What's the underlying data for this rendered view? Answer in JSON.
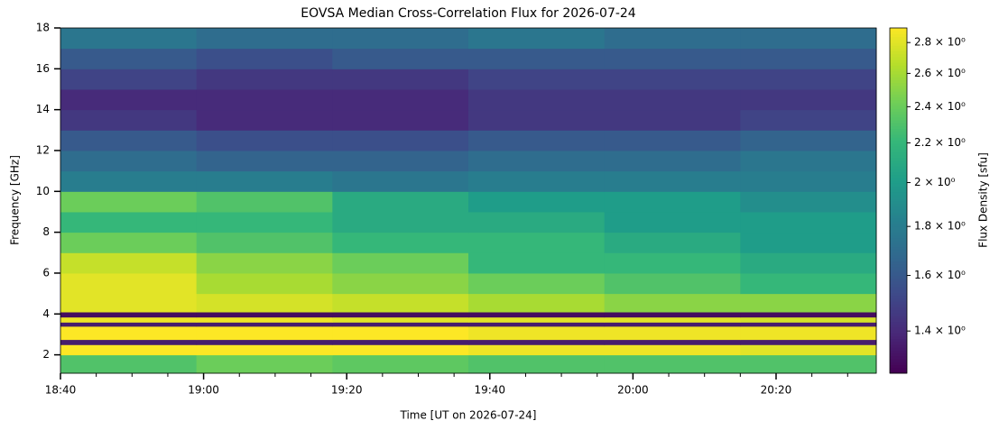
{
  "chart_data": {
    "type": "heatmap",
    "title": "EOVSA Median Cross-Correlation Flux for 2026-07-24",
    "x_label": "Time [UT on 2026-07-24]",
    "y_label": "Frequency [GHz]",
    "colorbar_label": "Flux Density [sfu]",
    "colormap": "viridis",
    "color_scale": "log",
    "x_edges": [
      "18:40",
      "18:59",
      "19:18",
      "19:37",
      "19:56",
      "20:15",
      "20:34"
    ],
    "y_edges": [
      1.1,
      2,
      2.5,
      2.75,
      3.4,
      3.6,
      3.85,
      4.1,
      5,
      6,
      7,
      8,
      9,
      10,
      11,
      12,
      13,
      14,
      15,
      16,
      17,
      18
    ],
    "z": [
      [
        2.3,
        2.4,
        2.35,
        2.3,
        2.3,
        2.3
      ],
      [
        2.9,
        2.9,
        2.9,
        2.85,
        2.85,
        2.8
      ],
      [
        1.35,
        1.35,
        1.35,
        1.35,
        1.35,
        1.35
      ],
      [
        2.9,
        2.9,
        2.9,
        2.85,
        2.85,
        2.85
      ],
      [
        1.35,
        1.35,
        1.35,
        1.35,
        1.35,
        1.35
      ],
      [
        2.85,
        2.85,
        2.8,
        2.8,
        2.8,
        2.75
      ],
      [
        1.3,
        1.3,
        1.3,
        1.3,
        1.3,
        1.3
      ],
      [
        2.8,
        2.75,
        2.7,
        2.6,
        2.5,
        2.5
      ],
      [
        2.8,
        2.6,
        2.5,
        2.4,
        2.3,
        2.2
      ],
      [
        2.7,
        2.5,
        2.4,
        2.2,
        2.2,
        2.1
      ],
      [
        2.4,
        2.3,
        2.2,
        2.2,
        2.1,
        2.0
      ],
      [
        2.2,
        2.2,
        2.1,
        2.1,
        2.0,
        2.0
      ],
      [
        2.4,
        2.3,
        2.1,
        2.0,
        2.0,
        1.9
      ],
      [
        1.8,
        1.8,
        1.75,
        1.8,
        1.8,
        1.8
      ],
      [
        1.7,
        1.65,
        1.65,
        1.7,
        1.7,
        1.75
      ],
      [
        1.6,
        1.55,
        1.55,
        1.6,
        1.6,
        1.65
      ],
      [
        1.45,
        1.4,
        1.4,
        1.45,
        1.45,
        1.5
      ],
      [
        1.4,
        1.4,
        1.4,
        1.45,
        1.45,
        1.45
      ],
      [
        1.5,
        1.45,
        1.45,
        1.5,
        1.5,
        1.5
      ],
      [
        1.6,
        1.55,
        1.6,
        1.6,
        1.6,
        1.6
      ],
      [
        1.75,
        1.7,
        1.7,
        1.75,
        1.7,
        1.7
      ]
    ],
    "xlim": [
      "18:40",
      "20:34"
    ],
    "xticks": [
      "18:40",
      "19:00",
      "19:20",
      "19:40",
      "20:00",
      "20:20"
    ],
    "xminorticks": [
      "18:45",
      "18:50",
      "18:55",
      "19:05",
      "19:10",
      "19:15",
      "19:25",
      "19:30",
      "19:35",
      "19:45",
      "19:50",
      "19:55",
      "20:05",
      "20:10",
      "20:15",
      "20:25",
      "20:30"
    ],
    "ylim": [
      1.1,
      18
    ],
    "yticks": [
      2,
      4,
      6,
      8,
      10,
      12,
      14,
      16,
      18
    ],
    "clim": [
      1.265,
      2.9
    ],
    "cticks": [
      {
        "value": 1.4,
        "label": "1.4 × 10⁰"
      },
      {
        "value": 1.6,
        "label": "1.6 × 10⁰"
      },
      {
        "value": 1.8,
        "label": "1.8 × 10⁰"
      },
      {
        "value": 2,
        "label": "2 × 10⁰"
      },
      {
        "value": 2.2,
        "label": "2.2 × 10⁰"
      },
      {
        "value": 2.4,
        "label": "2.4 × 10⁰"
      },
      {
        "value": 2.6,
        "label": "2.6 × 10⁰"
      },
      {
        "value": 2.8,
        "label": "2.8 × 10⁰"
      }
    ]
  }
}
